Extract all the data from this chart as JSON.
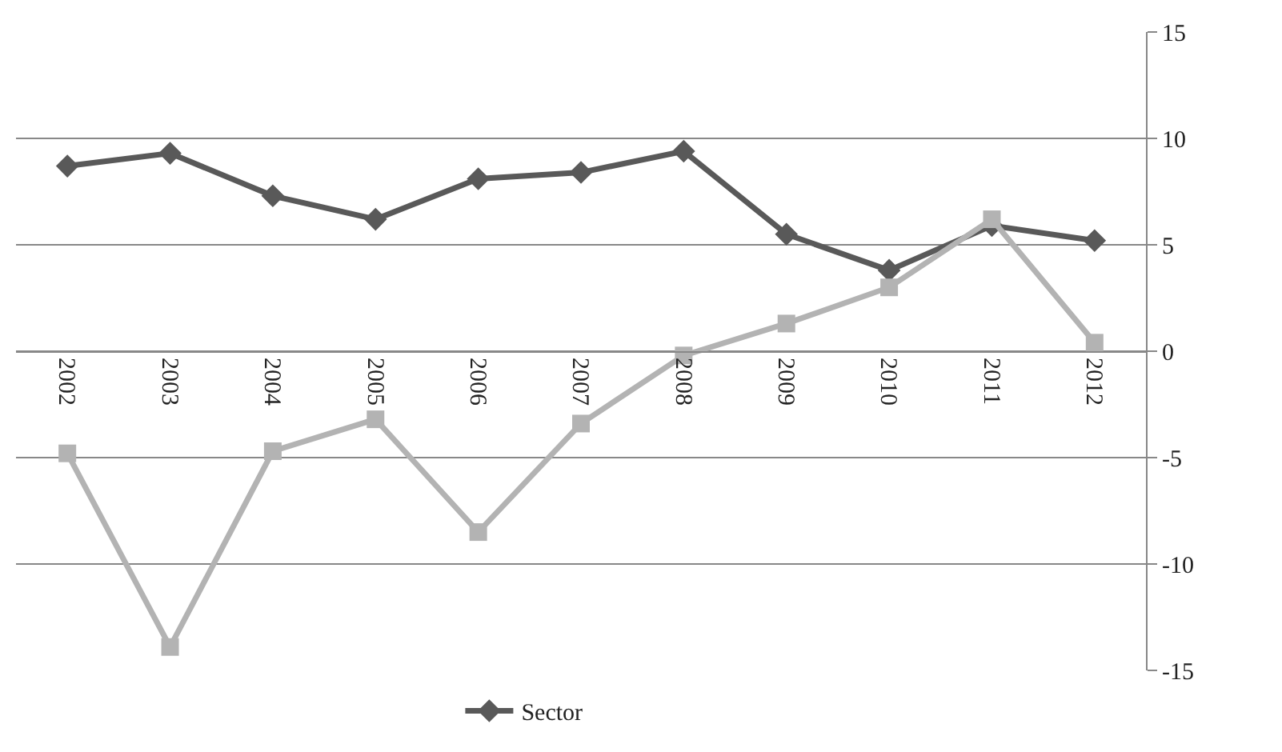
{
  "chart_data": {
    "type": "line",
    "categories": [
      "2002",
      "2003",
      "2004",
      "2005",
      "2006",
      "2007",
      "2008",
      "2009",
      "2010",
      "2011",
      "2012"
    ],
    "series": [
      {
        "name": "Sector",
        "color": "#595959",
        "marker": "diamond",
        "values": [
          8.7,
          9.3,
          7.3,
          6.2,
          8.1,
          8.4,
          9.4,
          5.5,
          3.8,
          5.9,
          5.2
        ]
      },
      {
        "color": "#b3b3b3",
        "marker": "square",
        "values": [
          -4.8,
          -13.9,
          -4.7,
          -3.2,
          -8.5,
          -3.4,
          -0.2,
          1.3,
          3.0,
          6.2,
          0.4
        ]
      }
    ],
    "ylim": [
      -15,
      15
    ],
    "yticks": [
      -15,
      -10,
      -5,
      0,
      5,
      10,
      15
    ],
    "grid": "y",
    "legend": "bottom",
    "line_style": "solid"
  }
}
